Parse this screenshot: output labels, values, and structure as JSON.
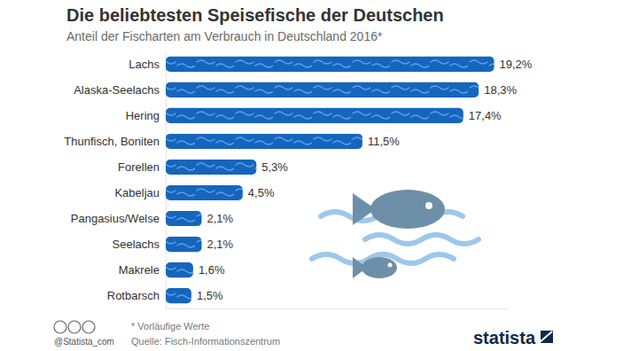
{
  "chart_data": {
    "type": "bar",
    "orientation": "horizontal",
    "title": "Die beliebtesten Speisefische der Deutschen",
    "subtitle": "Anteil der Fischarten am Verbrauch in Deutschland 2016*",
    "categories": [
      "Lachs",
      "Alaska-Seelachs",
      "Hering",
      "Thunfisch, Boniten",
      "Forellen",
      "Kabeljau",
      "Pangasius/Welse",
      "Seelachs",
      "Makrele",
      "Rotbarsch"
    ],
    "values": [
      19.2,
      18.3,
      17.4,
      11.5,
      5.3,
      4.5,
      2.1,
      2.1,
      1.6,
      1.5
    ],
    "value_labels": [
      "19,2%",
      "18,3%",
      "17,4%",
      "11,5%",
      "5,3%",
      "4,5%",
      "2,1%",
      "2,1%",
      "1,6%",
      "1,5%"
    ],
    "data_labels": true,
    "color": "#1665bd",
    "xlim": [
      0,
      20
    ],
    "xticks": [],
    "tick_labels": "y",
    "grid": false,
    "footnote": "* Vorläufige Werte",
    "source": "Quelle: Fisch-Informationszentrum",
    "credit": "@Statista_com",
    "logo": "statista"
  }
}
